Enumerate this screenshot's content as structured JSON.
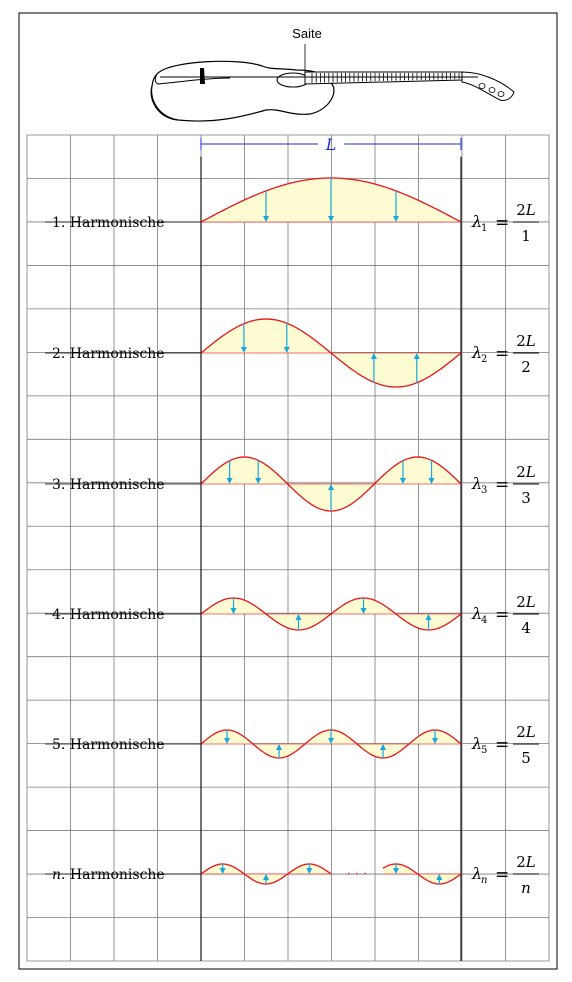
{
  "instrument": {
    "label": "Saite"
  },
  "length_label": "L",
  "rows": [
    {
      "n": 1,
      "label": "1. Harmonische",
      "lambda_sub": "1",
      "numerator": "2L",
      "denominator": "1"
    },
    {
      "n": 2,
      "label": "2. Harmonische",
      "lambda_sub": "2",
      "numerator": "2L",
      "denominator": "2"
    },
    {
      "n": 3,
      "label": "3. Harmonische",
      "lambda_sub": "3",
      "numerator": "2L",
      "denominator": "3"
    },
    {
      "n": 4,
      "label": "4. Harmonische",
      "lambda_sub": "4",
      "numerator": "2L",
      "denominator": "4"
    },
    {
      "n": 5,
      "label": "5. Harmonische",
      "lambda_sub": "5",
      "numerator": "2L",
      "denominator": "5"
    },
    {
      "n": "n",
      "label_var": "n",
      "label": ". Harmonische",
      "lambda_sub": "n",
      "numerator": "2L",
      "denominator": "n",
      "ellipsis": "· · ·"
    }
  ],
  "lambda_symbol": "λ",
  "equals": "=",
  "colors": {
    "wave": "#e8141a",
    "fill": "#fdfbd2",
    "arrow": "#16a7dc",
    "dimension": "#1d2fd6",
    "grid": "#7a7a7a",
    "frame": "#000000"
  }
}
